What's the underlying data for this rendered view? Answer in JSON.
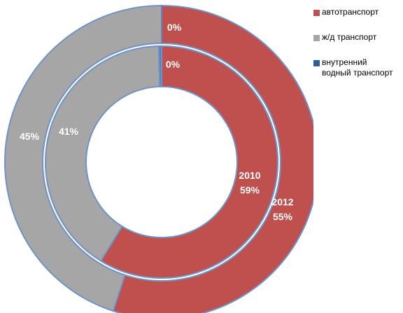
{
  "chart_data": {
    "type": "pie",
    "subtype": "doughnut",
    "legend_position": "right",
    "categories": [
      "автотранспорт",
      "ж/д транспорт",
      "внутренний водный транспорт"
    ],
    "colors": [
      "#c0504d",
      "#a6a6a6",
      "#4f81bd"
    ],
    "border_color": "#6f93c8",
    "series": [
      {
        "name": "2012",
        "ring": "outer",
        "values": [
          55,
          45,
          0
        ],
        "labels": [
          "2012\n55%",
          "45%",
          "0%"
        ]
      },
      {
        "name": "2010",
        "ring": "inner",
        "values": [
          59,
          41,
          0.4
        ],
        "labels": [
          "2010\n59%",
          "41%",
          "0%"
        ]
      }
    ]
  },
  "legend": [
    {
      "label": "автотранспорт",
      "color": "#c0504d"
    },
    {
      "label": "ж/д транспорт",
      "color": "#a6a6a6"
    },
    {
      "label": "внутренний\nводный транспорт",
      "color": "#2e5d9c"
    }
  ]
}
